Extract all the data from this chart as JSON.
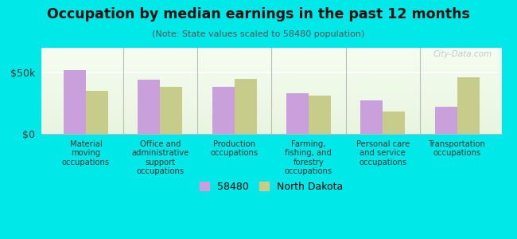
{
  "title": "Occupation by median earnings in the past 12 months",
  "subtitle": "(Note: State values scaled to 58480 population)",
  "categories": [
    "Material\nmoving\noccupations",
    "Office and\nadministrative\nsupport\noccupations",
    "Production\noccupations",
    "Farming,\nfishing, and\nforestry\noccupations",
    "Personal care\nand service\noccupations",
    "Transportation\noccupations"
  ],
  "values_58480": [
    52000,
    44000,
    38000,
    33000,
    27000,
    22000
  ],
  "values_nd": [
    35000,
    38000,
    45000,
    31000,
    18000,
    46000
  ],
  "color_58480": "#c9a0dc",
  "color_nd": "#c8cc8a",
  "ylim": [
    0,
    70000
  ],
  "yticks": [
    0,
    50000
  ],
  "ytick_labels": [
    "$0",
    "$50k"
  ],
  "legend_labels": [
    "58480",
    "North Dakota"
  ],
  "background_color": "#00e8e8",
  "watermark": "City-Data.com"
}
